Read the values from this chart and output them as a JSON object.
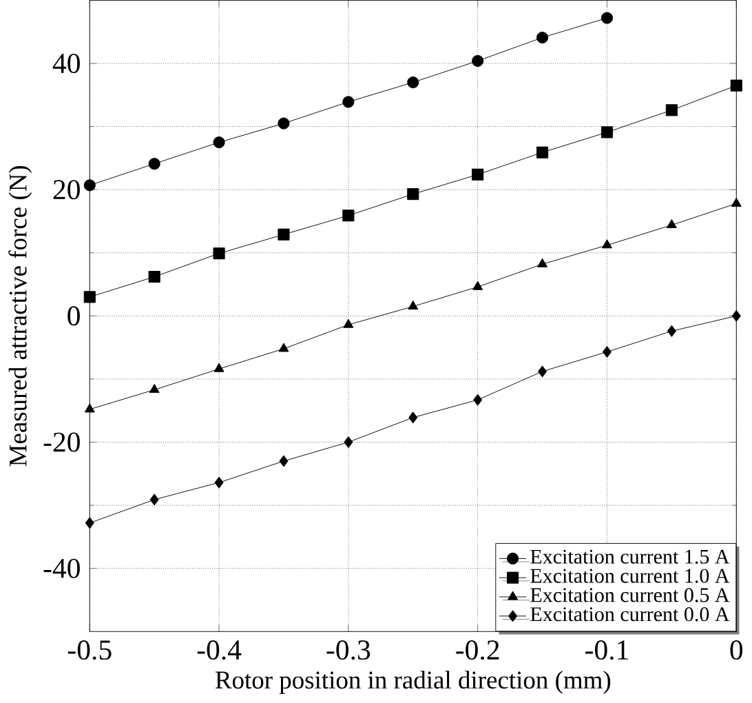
{
  "chart_data": {
    "type": "line",
    "xlabel": "Rotor position in radial direction (mm)",
    "ylabel": "Measured attractive force (N)",
    "x": [
      -0.5,
      -0.45,
      -0.4,
      -0.35,
      -0.3,
      -0.25,
      -0.2,
      -0.15,
      -0.1,
      -0.05,
      0
    ],
    "series": [
      {
        "name": "Excitation current 1.5 A",
        "color": "#000000",
        "marker": "circle",
        "values": [
          20.7,
          24.1,
          27.5,
          30.5,
          33.9,
          37.0,
          40.4,
          44.1,
          47.2,
          null,
          null
        ]
      },
      {
        "name": "Excitation current 1.0 A",
        "color": "#000000",
        "marker": "square",
        "values": [
          3.0,
          6.2,
          9.9,
          12.9,
          15.9,
          19.3,
          22.4,
          25.9,
          29.1,
          32.6,
          36.5
        ]
      },
      {
        "name": "Excitation current 0.5 A",
        "color": "#000000",
        "marker": "triangle",
        "values": [
          -14.8,
          -11.7,
          -8.4,
          -5.2,
          -1.4,
          1.5,
          4.6,
          8.2,
          11.2,
          14.4,
          17.8
        ]
      },
      {
        "name": "Excitation current 0.0 A",
        "color": "#000000",
        "marker": "diamond",
        "values": [
          -32.8,
          -29.1,
          -26.4,
          -23.0,
          -20.0,
          -16.1,
          -13.3,
          -8.8,
          -5.7,
          -2.4,
          0
        ]
      }
    ],
    "xlim": [
      -0.5,
      0
    ],
    "ylim": [
      -50,
      50
    ],
    "xticks": [
      -0.5,
      -0.4,
      -0.3,
      -0.2,
      -0.1,
      0
    ],
    "yticks": [
      -40,
      -20,
      0,
      20,
      40
    ],
    "grid": true,
    "legend": "bottom right",
    "line_style": "solid"
  }
}
